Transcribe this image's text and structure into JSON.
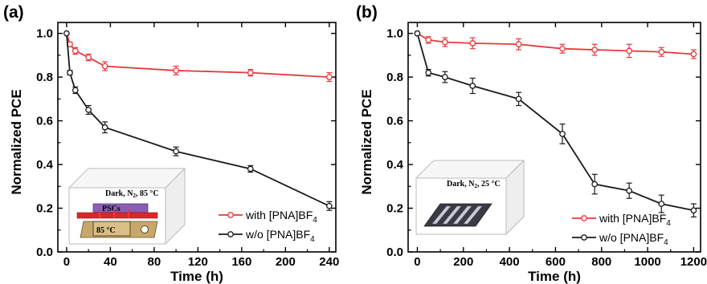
{
  "chart_data": [
    {
      "type": "line",
      "panel_label": "(a)",
      "xlabel": "Time (h)",
      "ylabel": "Normalized PCE",
      "xlim": [
        -8,
        246
      ],
      "ylim": [
        0.0,
        1.05
      ],
      "xticks": [
        0,
        40,
        80,
        120,
        160,
        200,
        240
      ],
      "yticks": [
        0.0,
        0.2,
        0.4,
        0.6,
        0.8,
        1.0
      ],
      "xtick_labels": [
        "0",
        "40",
        "80",
        "120",
        "160",
        "200",
        "240"
      ],
      "ytick_labels": [
        "0.0",
        "0.2",
        "0.4",
        "0.6",
        "0.8",
        "1.0"
      ],
      "legend_position": "bottom-right",
      "series": [
        {
          "name": "with [PNA]BF",
          "name_sub": "4",
          "color": "#e8383b",
          "x": [
            0,
            3,
            8,
            20,
            35,
            100,
            168,
            240
          ],
          "y": [
            1.0,
            0.95,
            0.92,
            0.89,
            0.85,
            0.83,
            0.82,
            0.8
          ],
          "err": [
            0,
            0.01,
            0.015,
            0.015,
            0.02,
            0.02,
            0.015,
            0.02
          ]
        },
        {
          "name": "w/o [PNA]BF",
          "name_sub": "4",
          "color": "#1a1a1a",
          "x": [
            0,
            3,
            8,
            20,
            35,
            100,
            168,
            240
          ],
          "y": [
            1.0,
            0.82,
            0.74,
            0.65,
            0.57,
            0.46,
            0.38,
            0.21
          ],
          "err": [
            0,
            0.01,
            0.015,
            0.02,
            0.025,
            0.02,
            0.015,
            0.02
          ]
        }
      ],
      "inset": {
        "text": "Dark, N",
        "text_sub": "2",
        "text_suffix": ", 85 °C",
        "device_label": "PSCs",
        "heater_label": "85 °C"
      }
    },
    {
      "type": "line",
      "panel_label": "(b)",
      "xlabel": "Time (h)",
      "ylabel": "Normalized PCE",
      "xlim": [
        -40,
        1230
      ],
      "ylim": [
        0.0,
        1.05
      ],
      "xticks": [
        0,
        200,
        400,
        600,
        800,
        1000,
        1200
      ],
      "yticks": [
        0.0,
        0.2,
        0.4,
        0.6,
        0.8,
        1.0
      ],
      "xtick_labels": [
        "0",
        "200",
        "400",
        "600",
        "800",
        "1000",
        "1200"
      ],
      "ytick_labels": [
        "0.0",
        "0.2",
        "0.4",
        "0.6",
        "0.8",
        "1.0"
      ],
      "legend_position": "bottom-right",
      "series": [
        {
          "name": "with [PNA]BF",
          "name_sub": "4",
          "color": "#e8383b",
          "x": [
            0,
            48,
            120,
            240,
            440,
            630,
            770,
            920,
            1060,
            1200
          ],
          "y": [
            1.0,
            0.97,
            0.96,
            0.955,
            0.95,
            0.93,
            0.925,
            0.92,
            0.915,
            0.905
          ],
          "err": [
            0,
            0.015,
            0.02,
            0.025,
            0.025,
            0.02,
            0.025,
            0.03,
            0.02,
            0.02
          ]
        },
        {
          "name": "w/o [PNA]BF",
          "name_sub": "4",
          "color": "#1a1a1a",
          "x": [
            0,
            48,
            120,
            240,
            440,
            630,
            770,
            920,
            1060,
            1200
          ],
          "y": [
            1.0,
            0.82,
            0.8,
            0.76,
            0.7,
            0.54,
            0.31,
            0.28,
            0.22,
            0.19
          ],
          "err": [
            0,
            0.015,
            0.025,
            0.035,
            0.03,
            0.045,
            0.045,
            0.035,
            0.04,
            0.03
          ]
        }
      ],
      "inset": {
        "text": "Dark, N",
        "text_sub": "2",
        "text_suffix": ", 25 °C"
      }
    }
  ]
}
